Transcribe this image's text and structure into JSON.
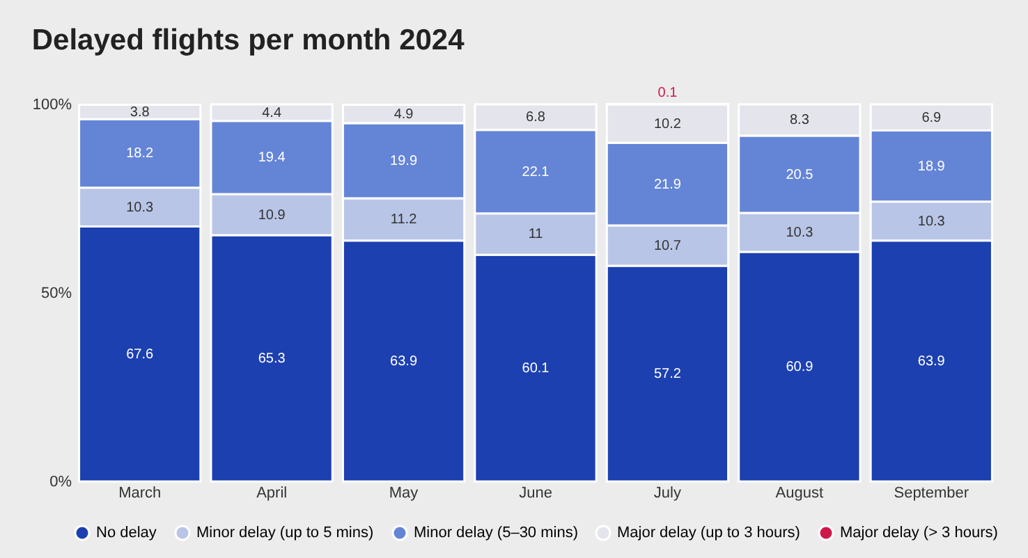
{
  "chart_data": {
    "type": "bar",
    "title": "Delayed flights per month 2024",
    "stacked": true,
    "data_labels": true,
    "legend": "bottom",
    "grid": false,
    "categories": [
      "March",
      "April",
      "May",
      "June",
      "July",
      "August",
      "September"
    ],
    "ylim": [
      0,
      100
    ],
    "yticks": [
      {
        "value": 0,
        "label": "0%"
      },
      {
        "value": 50,
        "label": "50%"
      },
      {
        "value": 100,
        "label": "100%"
      }
    ],
    "series": [
      {
        "name": "No delay",
        "color": "#1c40b0",
        "values": [
          67.6,
          65.3,
          63.9,
          60.1,
          57.2,
          60.9,
          63.9
        ]
      },
      {
        "name": "Minor delay (up to 5 mins)",
        "color": "#b8c5e6",
        "values": [
          10.3,
          10.9,
          11.2,
          11,
          10.7,
          10.3,
          10.3
        ]
      },
      {
        "name": "Minor delay (5–30 mins)",
        "color": "#6484d6",
        "values": [
          18.2,
          19.4,
          19.9,
          22.1,
          21.9,
          20.5,
          18.9
        ]
      },
      {
        "name": "Major delay (up to 3 hours)",
        "color": "#e4e5ec",
        "values": [
          3.8,
          4.4,
          4.9,
          6.8,
          10.2,
          8.3,
          6.9
        ]
      },
      {
        "name": "Major delay (> 3 hours)",
        "color": "#d0174a",
        "values": [
          null,
          null,
          null,
          null,
          0.1,
          null,
          null
        ]
      }
    ]
  }
}
